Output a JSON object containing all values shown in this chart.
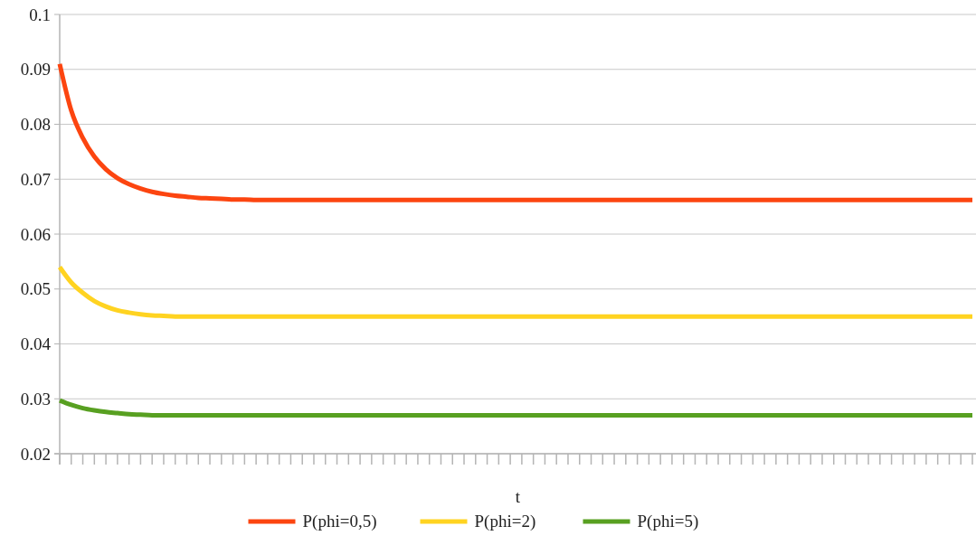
{
  "chart_data": {
    "type": "line",
    "xlabel": "t",
    "categories": [
      null,
      null,
      null,
      null,
      null,
      null,
      null,
      null,
      null,
      null,
      null,
      null,
      null,
      null,
      null,
      null,
      null,
      null,
      null,
      null,
      null,
      null,
      null,
      null,
      null,
      null,
      null,
      null,
      null,
      null,
      null,
      null,
      null,
      null,
      null,
      null,
      null,
      null,
      null,
      null,
      null,
      null,
      null,
      null,
      null,
      null,
      null,
      null,
      null,
      null,
      null,
      null,
      null,
      null,
      null,
      null,
      null,
      null,
      null,
      null,
      null,
      null,
      null,
      null,
      null,
      null,
      null,
      null,
      null,
      null,
      null,
      null,
      null,
      null,
      null,
      null,
      null,
      null,
      null,
      null
    ],
    "ylim": [
      0.02,
      0.1
    ],
    "yticks": [
      {
        "value": 0.02,
        "label": "0.02"
      },
      {
        "value": 0.03,
        "label": "0.03"
      },
      {
        "value": 0.04,
        "label": "0.04"
      },
      {
        "value": 0.05,
        "label": "0.05"
      },
      {
        "value": 0.06,
        "label": "0.06"
      },
      {
        "value": 0.07,
        "label": "0.07"
      },
      {
        "value": 0.08,
        "label": "0.08"
      },
      {
        "value": 0.09,
        "label": "0.09"
      },
      0.1
    ],
    "grid": "y",
    "legend": "bottom",
    "tick_labels": "y",
    "line_style": "solid",
    "marker": "none",
    "series": [
      {
        "name": "P(phi=0,5)",
        "color": "#fc4510",
        "values": [
          0.091,
          0.0825,
          0.0775,
          0.0741,
          0.0718,
          0.0702,
          0.0691,
          0.0683,
          0.0677,
          0.0673,
          0.067,
          0.0668,
          0.0666,
          0.0665,
          0.0664,
          0.0663,
          0.0663,
          0.0662,
          0.0662,
          0.0662,
          0.0662,
          0.0662,
          0.0662,
          0.0662,
          0.0662,
          0.0662,
          0.0662,
          0.0662,
          0.0662,
          0.0662,
          0.0662,
          0.0662,
          0.0662,
          0.0662,
          0.0662,
          0.0662,
          0.0662,
          0.0662,
          0.0662,
          0.0662,
          0.0662,
          0.0662,
          0.0662,
          0.0662,
          0.0662,
          0.0662,
          0.0662,
          0.0662,
          0.0662,
          0.0662,
          0.0662,
          0.0662,
          0.0662,
          0.0662,
          0.0662,
          0.0662,
          0.0662,
          0.0662,
          0.0662,
          0.0662,
          0.0662,
          0.0662,
          0.0662,
          0.0662,
          0.0662,
          0.0662,
          0.0662,
          0.0662,
          0.0662,
          0.0662,
          0.0662,
          0.0662,
          0.0662,
          0.0662,
          0.0662,
          0.0662,
          0.0662,
          0.0662,
          0.0662,
          0.0662
        ]
      },
      {
        "name": "P(phi=2)",
        "color": "#ffd321",
        "values": [
          0.054,
          0.0512,
          0.0493,
          0.0478,
          0.0468,
          0.0461,
          0.0457,
          0.0454,
          0.0452,
          0.0451,
          0.045,
          0.045,
          0.045,
          0.045,
          0.045,
          0.045,
          0.045,
          0.045,
          0.045,
          0.045,
          0.045,
          0.045,
          0.045,
          0.045,
          0.045,
          0.045,
          0.045,
          0.045,
          0.045,
          0.045,
          0.045,
          0.045,
          0.045,
          0.045,
          0.045,
          0.045,
          0.045,
          0.045,
          0.045,
          0.045,
          0.045,
          0.045,
          0.045,
          0.045,
          0.045,
          0.045,
          0.045,
          0.045,
          0.045,
          0.045,
          0.045,
          0.045,
          0.045,
          0.045,
          0.045,
          0.045,
          0.045,
          0.045,
          0.045,
          0.045,
          0.045,
          0.045,
          0.045,
          0.045,
          0.045,
          0.045,
          0.045,
          0.045,
          0.045,
          0.045,
          0.045,
          0.045,
          0.045,
          0.045,
          0.045,
          0.045,
          0.045,
          0.045,
          0.045,
          0.045
        ]
      },
      {
        "name": "P(phi=5)",
        "color": "#58a021",
        "values": [
          0.0297,
          0.0289,
          0.0283,
          0.0279,
          0.0276,
          0.0274,
          0.0272,
          0.0271,
          0.027,
          0.027,
          0.027,
          0.027,
          0.027,
          0.027,
          0.027,
          0.027,
          0.027,
          0.027,
          0.027,
          0.027,
          0.027,
          0.027,
          0.027,
          0.027,
          0.027,
          0.027,
          0.027,
          0.027,
          0.027,
          0.027,
          0.027,
          0.027,
          0.027,
          0.027,
          0.027,
          0.027,
          0.027,
          0.027,
          0.027,
          0.027,
          0.027,
          0.027,
          0.027,
          0.027,
          0.027,
          0.027,
          0.027,
          0.027,
          0.027,
          0.027,
          0.027,
          0.027,
          0.027,
          0.027,
          0.027,
          0.027,
          0.027,
          0.027,
          0.027,
          0.027,
          0.027,
          0.027,
          0.027,
          0.027,
          0.027,
          0.027,
          0.027,
          0.027,
          0.027,
          0.027,
          0.027,
          0.027,
          0.027,
          0.027,
          0.027,
          0.027,
          0.027,
          0.027,
          0.027,
          0.027
        ]
      }
    ]
  }
}
